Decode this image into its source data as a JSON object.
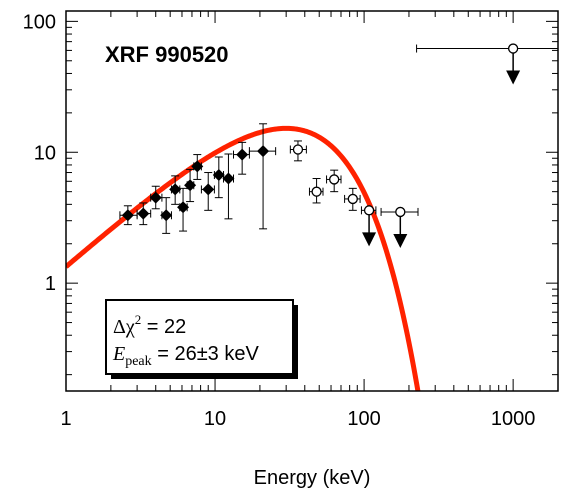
{
  "chart_data": {
    "type": "scatter",
    "title": "XRF 990520",
    "xlabel": "Energy (keV)",
    "ylabel": "",
    "x_scale": "log",
    "y_scale": "log",
    "xlim": [
      1,
      2000
    ],
    "ylim": [
      0.15,
      120
    ],
    "x_ticks": [
      {
        "value": 1,
        "label": "1"
      },
      {
        "value": 10,
        "label": "10"
      },
      {
        "value": 100,
        "label": "100"
      },
      {
        "value": 1000,
        "label": "1000"
      }
    ],
    "y_ticks": [
      {
        "value": 1,
        "label": "1"
      },
      {
        "value": 10,
        "label": "10"
      },
      {
        "value": 100,
        "label": "100"
      }
    ],
    "annotation": {
      "delta_symbol": "Δχ",
      "chi_exp": "2",
      "chi_value": " = 22",
      "epeak_E": "E",
      "epeak_sub": "peak",
      "epeak_value": " = 26±3 keV"
    },
    "series": [
      {
        "marker": "filled-diamond",
        "points": [
          {
            "x": 2.6,
            "y": 3.3,
            "x_lo": 2.3,
            "x_hi": 3.0,
            "y_lo": 2.8,
            "y_hi": 3.9
          },
          {
            "x": 3.3,
            "y": 3.4,
            "x_lo": 3.0,
            "x_hi": 3.7,
            "y_lo": 2.8,
            "y_hi": 4.1
          },
          {
            "x": 4.0,
            "y": 4.5,
            "x_lo": 3.7,
            "x_hi": 4.4,
            "y_lo": 3.7,
            "y_hi": 5.5
          },
          {
            "x": 4.7,
            "y": 3.3,
            "x_lo": 4.4,
            "x_hi": 5.1,
            "y_lo": 2.4,
            "y_hi": 4.5
          },
          {
            "x": 5.4,
            "y": 5.2,
            "x_lo": 5.1,
            "x_hi": 5.8,
            "y_lo": 4.0,
            "y_hi": 6.6
          },
          {
            "x": 6.1,
            "y": 3.8,
            "x_lo": 5.8,
            "x_hi": 6.5,
            "y_lo": 2.5,
            "y_hi": 5.3
          },
          {
            "x": 6.8,
            "y": 5.6,
            "x_lo": 6.5,
            "x_hi": 7.2,
            "y_lo": 4.2,
            "y_hi": 7.4
          },
          {
            "x": 7.6,
            "y": 7.8,
            "x_lo": 7.2,
            "x_hi": 8.1,
            "y_lo": 6.2,
            "y_hi": 9.6
          },
          {
            "x": 9.0,
            "y": 5.2,
            "x_lo": 8.1,
            "x_hi": 9.9,
            "y_lo": 3.6,
            "y_hi": 7.0
          },
          {
            "x": 10.6,
            "y": 6.7,
            "x_lo": 9.9,
            "x_hi": 11.4,
            "y_lo": 4.5,
            "y_hi": 9.2
          },
          {
            "x": 12.3,
            "y": 6.3,
            "x_lo": 11.4,
            "x_hi": 13.3,
            "y_lo": 3.1,
            "y_hi": 9.7
          },
          {
            "x": 15.2,
            "y": 9.6,
            "x_lo": 13.3,
            "x_hi": 17.0,
            "y_lo": 6.8,
            "y_hi": 11.9
          },
          {
            "x": 21.0,
            "y": 10.2,
            "x_lo": 17.0,
            "x_hi": 25.5,
            "y_lo": 2.6,
            "y_hi": 16.5
          }
        ]
      },
      {
        "marker": "open-circle",
        "points": [
          {
            "x": 36,
            "y": 10.5,
            "x_lo": 32,
            "x_hi": 41,
            "y_lo": 8.6,
            "y_hi": 12.2
          },
          {
            "x": 48,
            "y": 5.0,
            "x_lo": 43,
            "x_hi": 53,
            "y_lo": 4.1,
            "y_hi": 6.3
          },
          {
            "x": 63,
            "y": 6.2,
            "x_lo": 56,
            "x_hi": 70,
            "y_lo": 5.0,
            "y_hi": 7.3
          },
          {
            "x": 84,
            "y": 4.4,
            "x_lo": 74,
            "x_hi": 94,
            "y_lo": 3.6,
            "y_hi": 5.3
          },
          {
            "x": 108,
            "y": 3.6,
            "x_lo": 96,
            "x_hi": 120,
            "upper_limit": true
          },
          {
            "x": 175,
            "y": 3.5,
            "x_lo": 130,
            "x_hi": 230,
            "upper_limit": true
          },
          {
            "x": 1000,
            "y": 62,
            "x_lo": 225,
            "x_hi": 2000,
            "upper_limit": true
          }
        ]
      }
    ],
    "model_curve": {
      "color": "#ff2200",
      "form": "x * exp(-x / E0)",
      "E0": 30,
      "norm": 1.38,
      "x_from": 1,
      "x_to": 300
    }
  }
}
